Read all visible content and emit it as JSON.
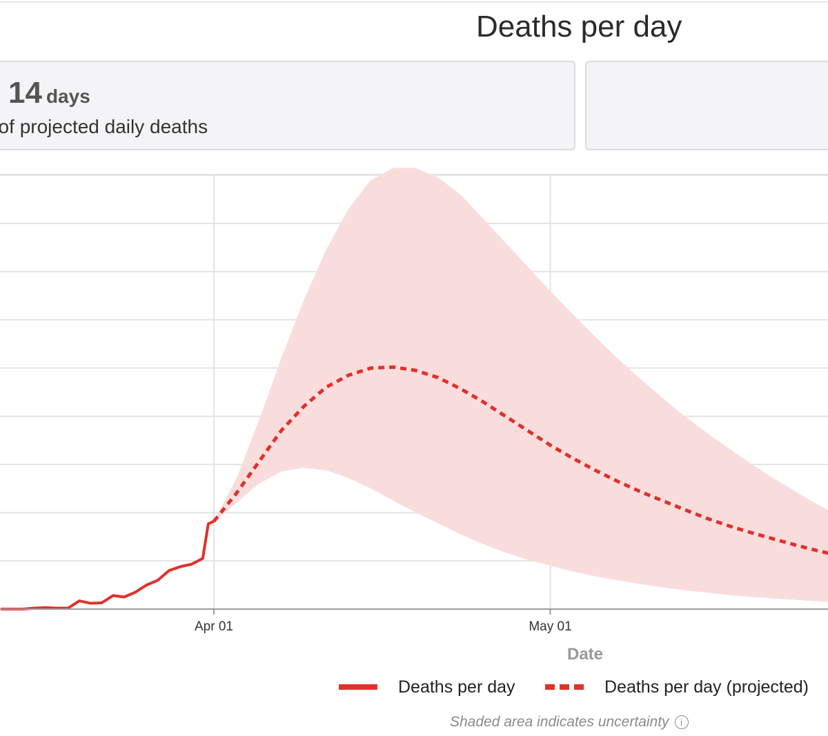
{
  "header": {
    "title": "Deaths per day"
  },
  "summary_card": {
    "value": "14",
    "unit": "days",
    "description": "t of projected daily deaths"
  },
  "colors": {
    "series_actual": "#e0312a",
    "series_projected": "#e0312a",
    "uncertainty_band": "#f9dddd",
    "gridline": "#e3e3e3",
    "axis": "#9a9a9a"
  },
  "chart_data": {
    "type": "line",
    "title": "Deaths per day",
    "xlabel": "Date",
    "ylabel": "",
    "x_unit": "days since Apr 01",
    "xlim": [
      -19,
      58
    ],
    "ylim": [
      0,
      9
    ],
    "y_gridlines": [
      1,
      2,
      3,
      4,
      5,
      6,
      7,
      8,
      9
    ],
    "y_units_note": "y-axis tick labels not visible in crop; values shown in relative gridline units",
    "x_ticks": [
      {
        "x": 0,
        "label": "Apr 01"
      },
      {
        "x": 30,
        "label": "May 01"
      }
    ],
    "series": [
      {
        "name": "Deaths per day",
        "style": "solid",
        "x": [
          -19,
          -17,
          -16,
          -15,
          -14,
          -13,
          -12,
          -11,
          -10,
          -9,
          -8,
          -7,
          -6,
          -5,
          -4,
          -3,
          -2,
          -1,
          -0.5,
          0
        ],
        "values": [
          0,
          0,
          0.02,
          0.03,
          0.02,
          0.02,
          0.17,
          0.12,
          0.13,
          0.28,
          0.25,
          0.35,
          0.5,
          0.6,
          0.8,
          0.88,
          0.93,
          1.05,
          1.77,
          1.82
        ]
      },
      {
        "name": "Deaths per day (projected)",
        "style": "dashed",
        "x": [
          0,
          2,
          4,
          6,
          8,
          10,
          12,
          14,
          16,
          18,
          20,
          22,
          24,
          26,
          28,
          30,
          32,
          34,
          36,
          38,
          40,
          42,
          44,
          46,
          48,
          50,
          52,
          54,
          56,
          58
        ],
        "values": [
          1.82,
          2.4,
          3.05,
          3.7,
          4.2,
          4.6,
          4.85,
          5.0,
          5.02,
          4.95,
          4.8,
          4.57,
          4.3,
          4.0,
          3.7,
          3.4,
          3.13,
          2.88,
          2.65,
          2.44,
          2.25,
          2.06,
          1.88,
          1.72,
          1.58,
          1.45,
          1.32,
          1.2,
          1.1,
          0.99
        ]
      }
    ],
    "uncertainty_band": {
      "label": "Shaded area indicates uncertainty",
      "x": [
        0,
        2,
        4,
        6,
        8,
        10,
        12,
        14,
        16,
        18,
        20,
        22,
        24,
        26,
        28,
        30,
        32,
        34,
        36,
        38,
        40,
        42,
        44,
        46,
        48,
        50,
        52,
        54,
        56,
        58
      ],
      "upper": [
        1.82,
        2.7,
        3.9,
        5.2,
        6.4,
        7.45,
        8.3,
        8.9,
        9.15,
        9.15,
        8.95,
        8.6,
        8.1,
        7.6,
        7.1,
        6.6,
        6.12,
        5.65,
        5.2,
        4.78,
        4.38,
        4.0,
        3.65,
        3.32,
        3.0,
        2.7,
        2.42,
        2.15,
        1.9,
        1.68
      ],
      "lower": [
        1.82,
        2.2,
        2.6,
        2.85,
        2.93,
        2.88,
        2.72,
        2.5,
        2.25,
        2.0,
        1.78,
        1.55,
        1.35,
        1.17,
        1.02,
        0.9,
        0.78,
        0.68,
        0.6,
        0.52,
        0.45,
        0.39,
        0.34,
        0.29,
        0.25,
        0.22,
        0.19,
        0.16,
        0.13,
        0.1
      ]
    },
    "legend": [
      {
        "label": "Deaths per day",
        "style": "solid"
      },
      {
        "label": "Deaths per day (projected)",
        "style": "dashed"
      }
    ],
    "legend_position": "bottom-right",
    "note": "Shaded area indicates uncertainty",
    "grid": true
  }
}
